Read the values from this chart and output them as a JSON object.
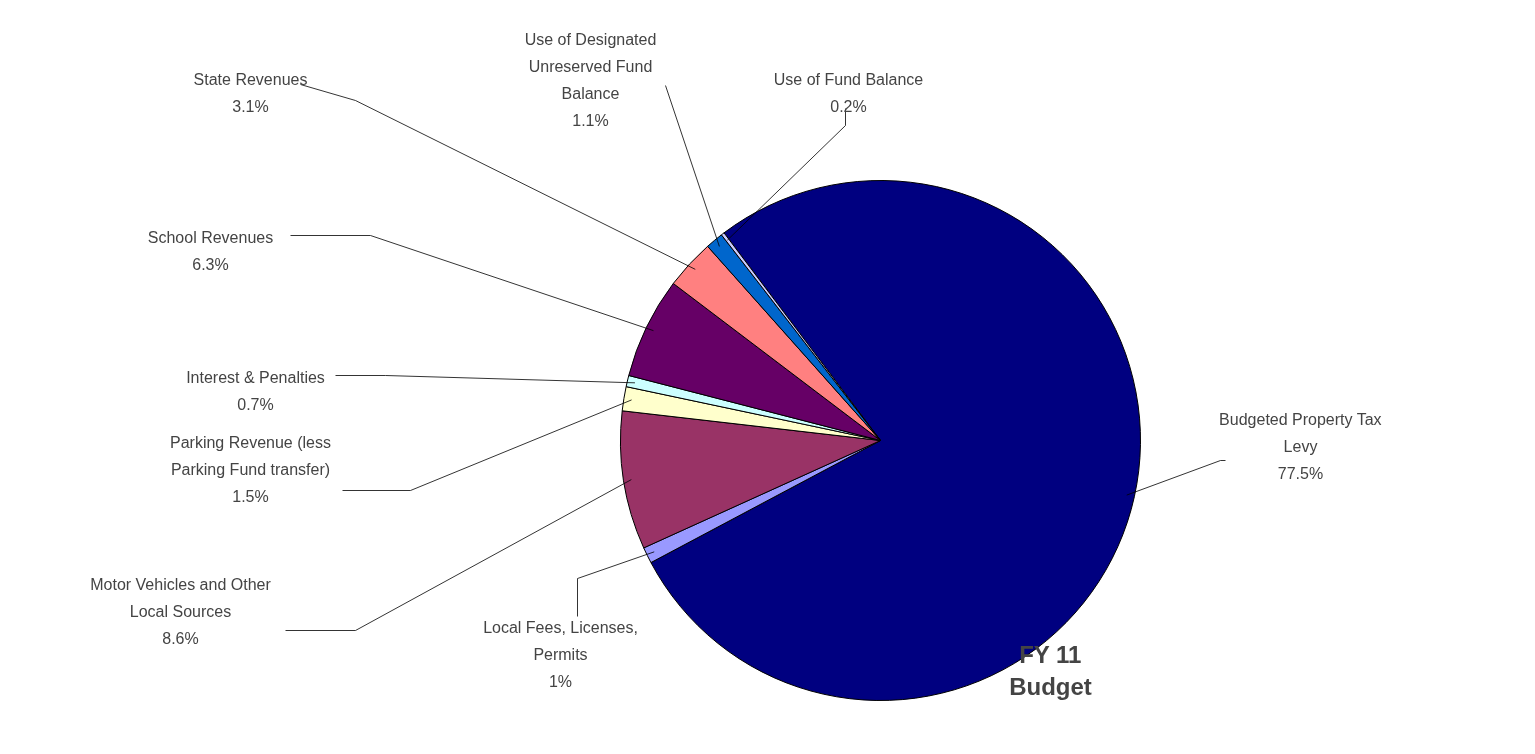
{
  "chart_data": {
    "type": "pie",
    "title": "FY 11 Budget",
    "categories": [
      "Budgeted Property Tax Levy",
      "Local Fees, Licenses, Permits",
      "Motor Vehicles and Other Local Sources",
      "Parking Revenue (less Parking Fund transfer)",
      "Interest & Penalties",
      "School Revenues",
      "State Revenues",
      "Use of Designated Unreserved Fund Balance",
      "Use of Fund Balance"
    ],
    "values": [
      77.5,
      1,
      8.6,
      1.5,
      0.7,
      6.3,
      3.1,
      1.1,
      0.2
    ],
    "value_labels": [
      "77.5%",
      "1%",
      "8.6%",
      "1.5%",
      "0.7%",
      "6.3%",
      "3.1%",
      "1.1%",
      "0.2%"
    ],
    "colors": [
      "#000080",
      "#9999ff",
      "#993366",
      "#ffffcc",
      "#ccffff",
      "#660066",
      "#ff8080",
      "#0066cc",
      "#ccccff"
    ]
  }
}
